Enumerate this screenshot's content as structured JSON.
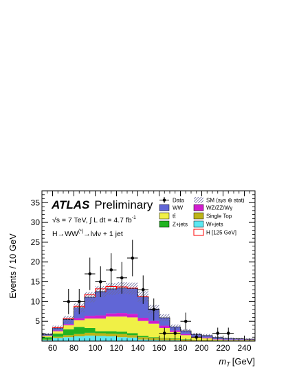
{
  "chart_data": {
    "type": "bar",
    "stacked": true,
    "x_edges": [
      50,
      60,
      70,
      80,
      90,
      100,
      110,
      120,
      130,
      140,
      150,
      160,
      170,
      180,
      190,
      200,
      210,
      220,
      230,
      240,
      250
    ],
    "x_ticks": [
      60,
      80,
      100,
      120,
      140,
      160,
      180,
      200,
      220,
      240
    ],
    "x_tick_labels": [
      "60",
      "80",
      "100",
      "120",
      "140",
      "160",
      "180",
      "200",
      "220",
      "240"
    ],
    "xlabel_symbol": "m",
    "xlabel_sub": "T",
    "xlabel_unit": "[GeV]",
    "ylabel": "Events / 10 GeV",
    "xlim": [
      50,
      250
    ],
    "ylim": [
      0,
      38
    ],
    "y_ticks": [
      5,
      10,
      15,
      20,
      25,
      30,
      35
    ],
    "y_tick_labels": [
      "5",
      "10",
      "15",
      "20",
      "25",
      "30",
      "35"
    ],
    "annotations": {
      "atlas": "ATLAS",
      "preliminary": "Preliminary",
      "energy_line": "√s = 7 TeV, ∫ L dt = 4.7 fb",
      "lumi_sup": "-1",
      "process_pre": "H→WW",
      "process_sup": "(*)",
      "process_post": "→lνlν + 1 jet"
    },
    "legend": {
      "data": "Data",
      "sm": "SM (sys ⊕ stat)",
      "ww": "WW",
      "wzzzwg": "WZ/ZZ/Wγ",
      "ttbar": "tt̄",
      "singletop": "Single Top",
      "zjets": "Z+jets",
      "wjets": "W+jets",
      "higgs": "H [125 GeV]"
    },
    "series": [
      {
        "key": "wjets",
        "color": "#5ce8f2",
        "values": [
          0.3,
          0.8,
          1.0,
          1.2,
          1.4,
          1.3,
          1.2,
          1.0,
          0.9,
          0.4,
          0.3,
          0.2,
          0.2,
          0.1,
          0.05,
          0.05,
          0.05,
          0.05,
          0.05,
          0.05
        ]
      },
      {
        "key": "singletop",
        "color": "#bdb418",
        "values": [
          0.1,
          0.3,
          0.5,
          0.6,
          0.7,
          0.7,
          0.7,
          0.8,
          0.6,
          0.6,
          0.5,
          0.5,
          0.4,
          0.3,
          0.2,
          0.2,
          0.1,
          0.1,
          0.1,
          0.1
        ]
      },
      {
        "key": "zjets",
        "color": "#22b322",
        "values": [
          0.6,
          0.8,
          1.5,
          1.8,
          1.2,
          0.5,
          0.6,
          0.6,
          0.5,
          0.3,
          0.2,
          0.1,
          0.1,
          0.1,
          0.05,
          0.05,
          0.05,
          0.05,
          0.05,
          0.05
        ]
      },
      {
        "key": "ttbar",
        "color": "#f0f046",
        "values": [
          0.3,
          0.6,
          1.0,
          1.7,
          2.4,
          3.2,
          3.7,
          3.8,
          4.0,
          3.8,
          3.4,
          2.5,
          1.6,
          1.0,
          0.6,
          0.4,
          0.2,
          0.1,
          0.1,
          0.1
        ]
      },
      {
        "key": "wzzzwg",
        "color": "#d11ccf",
        "values": [
          0.1,
          0.2,
          0.3,
          0.5,
          0.7,
          0.8,
          0.8,
          0.9,
          0.9,
          0.8,
          0.7,
          0.6,
          0.4,
          0.3,
          0.2,
          0.2,
          0.1,
          0.1,
          0.1,
          0.1
        ]
      },
      {
        "key": "ww",
        "color": "#6166d6",
        "values": [
          0.3,
          0.6,
          1.2,
          2.6,
          4.7,
          6.0,
          6.2,
          6.3,
          6.4,
          5.3,
          3.0,
          2.0,
          0.9,
          0.8,
          0.6,
          0.5,
          0.4,
          0.3,
          0.2,
          0.1
        ]
      }
    ],
    "higgs_values": [
      0.0,
      0.1,
      0.2,
      0.4,
      0.6,
      0.7,
      0.6,
      0.3,
      0.1,
      0.05,
      0.0,
      0.0,
      0.0,
      0.0,
      0.0,
      0.0,
      0.0,
      0.0,
      0.0,
      0.0
    ],
    "sm_uncertainty": [
      0.4,
      0.6,
      0.9,
      1.1,
      1.3,
      1.4,
      1.5,
      1.5,
      1.5,
      1.4,
      1.1,
      0.9,
      0.6,
      0.5,
      0.4,
      0.4,
      0.3,
      0.2,
      0.2,
      0.2
    ],
    "data_points": [
      {
        "x": 75,
        "y": 10,
        "err": 3.2
      },
      {
        "x": 85,
        "y": 10,
        "err": 3.2
      },
      {
        "x": 95,
        "y": 17,
        "err": 4.1
      },
      {
        "x": 105,
        "y": 15,
        "err": 3.9
      },
      {
        "x": 115,
        "y": 18,
        "err": 4.2
      },
      {
        "x": 125,
        "y": 16,
        "err": 4.0
      },
      {
        "x": 135,
        "y": 21,
        "err": 4.6
      },
      {
        "x": 145,
        "y": 13,
        "err": 3.6
      },
      {
        "x": 155,
        "y": 8,
        "err": 2.8
      },
      {
        "x": 165,
        "y": 2,
        "err": 1.4
      },
      {
        "x": 175,
        "y": 2,
        "err": 1.4
      },
      {
        "x": 185,
        "y": 5,
        "err": 2.2
      },
      {
        "x": 195,
        "y": 1,
        "err": 1.0
      },
      {
        "x": 215,
        "y": 2,
        "err": 1.4
      },
      {
        "x": 225,
        "y": 2,
        "err": 1.4
      }
    ]
  }
}
